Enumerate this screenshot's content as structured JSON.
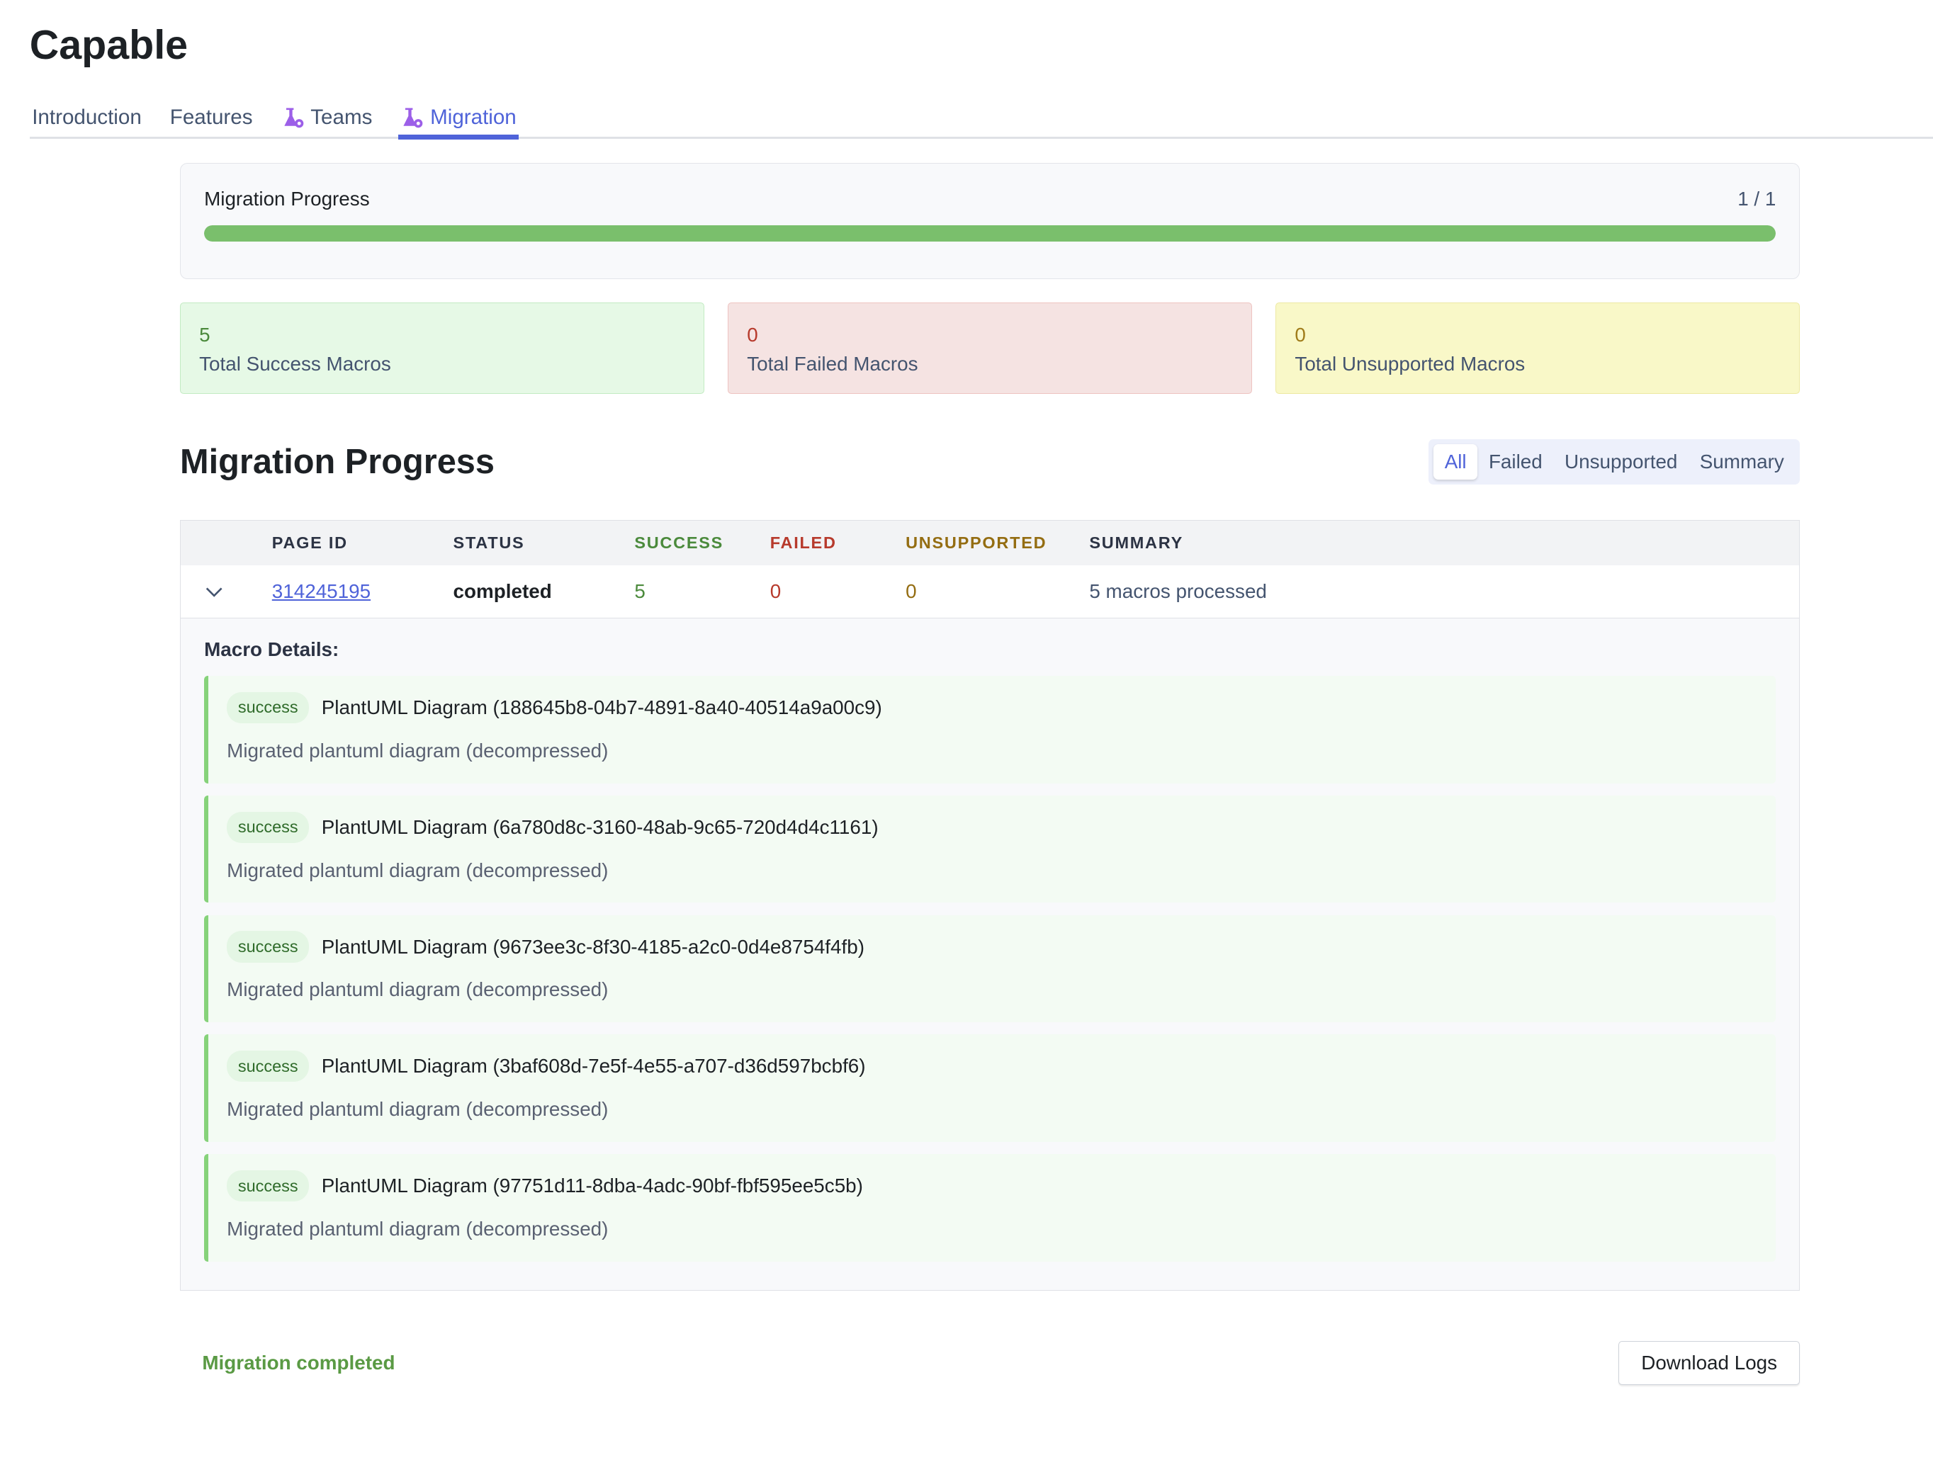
{
  "app": {
    "title": "Capable"
  },
  "tabs": [
    {
      "label": "Introduction",
      "icon": null,
      "active": false
    },
    {
      "label": "Features",
      "icon": null,
      "active": false
    },
    {
      "label": "Teams",
      "icon": "flask-gear-icon",
      "active": false
    },
    {
      "label": "Migration",
      "icon": "flask-gear-icon",
      "active": true
    }
  ],
  "progress": {
    "title": "Migration Progress",
    "count": "1 / 1",
    "percent": 100,
    "color": "#7abf6c"
  },
  "stats": [
    {
      "value": "5",
      "label": "Total Success Macros"
    },
    {
      "value": "0",
      "label": "Total Failed Macros"
    },
    {
      "value": "0",
      "label": "Total Unsupported Macros"
    }
  ],
  "section": {
    "title": "Migration Progress"
  },
  "filters": [
    {
      "label": "All",
      "active": true
    },
    {
      "label": "Failed"
    },
    {
      "label": "Unsupported"
    },
    {
      "label": "Summary"
    }
  ],
  "table": {
    "headers": [
      "PAGE ID",
      "STATUS",
      "SUCCESS",
      "FAILED",
      "UNSUPPORTED",
      "SUMMARY"
    ],
    "rows": [
      {
        "page_id": "314245195",
        "status": "completed",
        "success": "5",
        "failed": "0",
        "unsupported": "0",
        "summary": "5 macros processed"
      }
    ]
  },
  "details": {
    "title": "Macro Details:",
    "macros": [
      {
        "status": "success",
        "name": "PlantUML Diagram (188645b8-04b7-4891-8a40-40514a9a00c9)",
        "message": "Migrated plantuml diagram (decompressed)"
      },
      {
        "status": "success",
        "name": "PlantUML Diagram (6a780d8c-3160-48ab-9c65-720d4d4c1161)",
        "message": "Migrated plantuml diagram (decompressed)"
      },
      {
        "status": "success",
        "name": "PlantUML Diagram (9673ee3c-8f30-4185-a2c0-0d4e8754f4fb)",
        "message": "Migrated plantuml diagram (decompressed)"
      },
      {
        "status": "success",
        "name": "PlantUML Diagram (3baf608d-7e5f-4e55-a707-d36d597bcbf6)",
        "message": "Migrated plantuml diagram (decompressed)"
      },
      {
        "status": "success",
        "name": "PlantUML Diagram (97751d11-8dba-4adc-90bf-fbf595ee5c5b)",
        "message": "Migrated plantuml diagram (decompressed)"
      }
    ]
  },
  "footer": {
    "status": "Migration completed",
    "download_label": "Download Logs"
  }
}
